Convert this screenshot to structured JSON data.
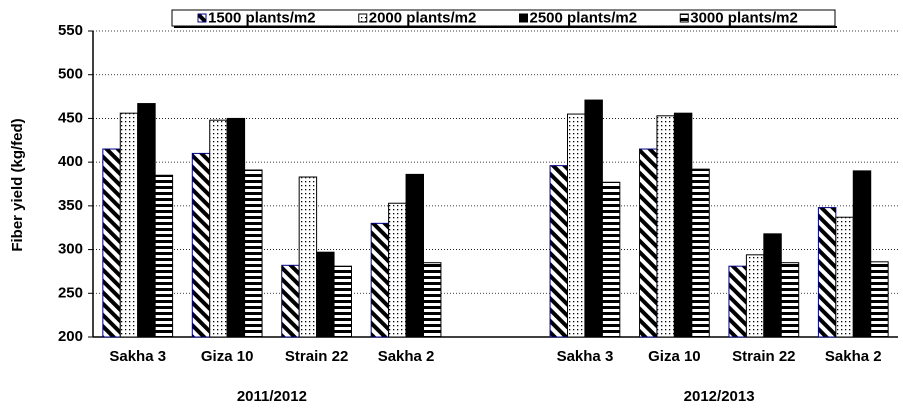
{
  "chart_data": {
    "type": "bar",
    "y_label": "Fiber yield (kg/fed)",
    "categories": [
      "Sakha 3",
      "Giza 10",
      "Strain 22",
      "Sakha 2",
      null,
      "Sakha 3",
      "Giza 10",
      "Strain 22",
      "Sakha 2"
    ],
    "group_labels": [
      "2011/2012",
      "2012/2013"
    ],
    "series": [
      {
        "name": "1500 plants/m2",
        "color": "#000080",
        "pattern": "diagonal",
        "values": [
          415,
          410,
          282,
          330,
          null,
          396,
          415,
          281,
          348
        ]
      },
      {
        "name": "2000 plants/m2",
        "color": "#000000",
        "pattern": "dots",
        "values": [
          456,
          448,
          383,
          353,
          null,
          455,
          453,
          294,
          337
        ]
      },
      {
        "name": "2500 plants/m2",
        "color": "#000000",
        "pattern": "solid",
        "values": [
          467,
          450,
          297,
          386,
          null,
          471,
          456,
          318,
          390
        ]
      },
      {
        "name": "3000 plants/m2",
        "color": "#000000",
        "pattern": "hstripes",
        "values": [
          385,
          391,
          281,
          285,
          null,
          377,
          392,
          285,
          286
        ]
      }
    ],
    "ylim": [
      200,
      550
    ],
    "yticks": [
      200,
      250,
      300,
      350,
      400,
      450,
      500,
      550
    ],
    "grid": true,
    "legend": "top"
  }
}
